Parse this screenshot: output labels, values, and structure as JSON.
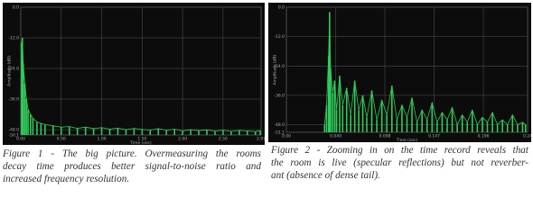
{
  "chart_data": [
    {
      "type": "impulse",
      "xlabel": "Time (sec)",
      "ylabel": "Amplitude (dB)",
      "color": "#2ecc5a",
      "grid": true,
      "xlim": [
        0,
        2.97
      ],
      "ylim": [
        -50.1,
        0
      ],
      "xticks": [
        {
          "value": 0,
          "label": "0.00"
        },
        {
          "value": 0.5,
          "label": "0.50"
        },
        {
          "value": 1,
          "label": "1.00"
        },
        {
          "value": 1.5,
          "label": "1.50"
        },
        {
          "value": 2,
          "label": "2.00"
        },
        {
          "value": 2.5,
          "label": "2.50"
        },
        2.97
      ],
      "yticks": [
        {
          "value": 0,
          "label": "0.0"
        },
        {
          "value": -12,
          "label": "-12.0"
        },
        {
          "value": -24,
          "label": "-24.0"
        },
        {
          "value": -36,
          "label": "-36.0"
        },
        {
          "value": -48,
          "label": "-48.0"
        },
        -50.1
      ],
      "x": [
        0.01,
        0.02,
        0.03,
        0.05,
        0.07,
        0.09,
        0.12,
        0.15,
        0.2,
        0.25,
        0.3,
        0.4,
        0.5,
        0.6,
        0.7,
        0.8,
        0.9,
        1.0,
        1.1,
        1.2,
        1.3,
        1.4,
        1.5,
        1.6,
        1.7,
        1.8,
        1.9,
        2.0,
        2.1,
        2.2,
        2.3,
        2.4,
        2.5,
        2.6,
        2.7,
        2.8,
        2.9,
        2.96
      ],
      "values": [
        -14,
        -12,
        -22,
        -30,
        -36,
        -40,
        -42,
        -43.5,
        -45,
        -45.5,
        -46,
        -46.5,
        -47,
        -46.8,
        -47.5,
        -47,
        -47.6,
        -47.2,
        -47.8,
        -47.4,
        -48,
        -47.5,
        -47.9,
        -48.2,
        -47.6,
        -48.3,
        -47.8,
        -48.5,
        -48,
        -48.4,
        -48.1,
        -48.6,
        -48.2,
        -48.7,
        -48.3,
        -48.5,
        -48.8,
        -48.4
      ]
    },
    {
      "type": "impulse",
      "xlabel": "Time (sec)",
      "ylabel": "Amplitude (dB)",
      "color": "#2ecc5a",
      "grid": true,
      "xlim": [
        0,
        0.24
      ],
      "ylim": [
        -51.1,
        0
      ],
      "xticks": [
        {
          "value": 0,
          "label": "0.00"
        },
        0.049,
        0.098,
        0.147,
        0.196,
        0.24
      ],
      "yticks": [
        {
          "value": 0,
          "label": "0.0"
        },
        {
          "value": -12,
          "label": "-12.0"
        },
        {
          "value": -24,
          "label": "-24.0"
        },
        {
          "value": -36,
          "label": "-36.0"
        },
        {
          "value": -48,
          "label": "-48.0"
        },
        -51.1
      ],
      "x": [
        0.038,
        0.04,
        0.042,
        0.043,
        0.044,
        0.046,
        0.048,
        0.05,
        0.053,
        0.056,
        0.06,
        0.064,
        0.068,
        0.072,
        0.076,
        0.08,
        0.085,
        0.09,
        0.095,
        0.1,
        0.105,
        0.11,
        0.115,
        0.12,
        0.125,
        0.13,
        0.135,
        0.14,
        0.145,
        0.15,
        0.155,
        0.16,
        0.165,
        0.17,
        0.175,
        0.18,
        0.185,
        0.19,
        0.195,
        0.2,
        0.205,
        0.21,
        0.215,
        0.22,
        0.225,
        0.23,
        0.235,
        0.238
      ],
      "values": [
        -48,
        -40,
        -20,
        -2,
        -25,
        -35,
        -30,
        -42,
        -28,
        -40,
        -33,
        -44,
        -30,
        -42,
        -36,
        -45,
        -34,
        -46,
        -38,
        -44,
        -32,
        -46,
        -40,
        -45,
        -37,
        -47,
        -42,
        -46,
        -39,
        -47,
        -43,
        -46,
        -41,
        -48,
        -44,
        -47,
        -42,
        -48,
        -45,
        -47,
        -43,
        -48,
        -46,
        -48,
        -44,
        -48,
        -47,
        -48
      ]
    }
  ],
  "captions": [
    [
      "Figure 1 - The big picture. Overmeasuring the rooms",
      "decay time produces better signal-to-noise ratio and",
      "increased frequency resolution."
    ],
    [
      "Figure 2 - Zooming in on the time record reveals that",
      "the room is live (specular reflections) but not reverber-",
      "ant (absence of dense tail)."
    ]
  ]
}
